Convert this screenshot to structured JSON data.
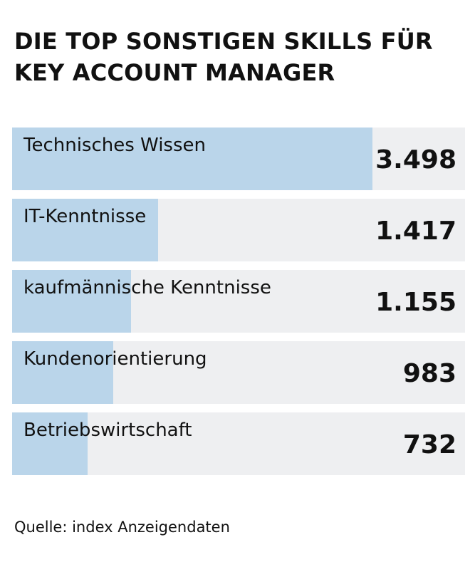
{
  "title": "DIE TOP SONSTIGEN SKILLS FÜR KEY ACCOUNT MANAGER",
  "source": "Quelle: index Anzeigendaten",
  "colors": {
    "bar_fill": "#bad5ea",
    "track": "#eeeff1",
    "text": "#111111"
  },
  "chart_data": {
    "type": "bar",
    "orientation": "horizontal",
    "title": "DIE TOP SONSTIGEN SKILLS FÜR KEY ACCOUNT MANAGER",
    "categories": [
      "Technisches Wissen",
      "IT-Kenntnisse",
      "kaufmännische Kenntnisse",
      "Kundenorientierung",
      "Betriebswirtschaft"
    ],
    "values": [
      3498,
      1417,
      1155,
      983,
      732
    ],
    "value_labels": [
      "3.498",
      "1.417",
      "1.155",
      "983",
      "732"
    ],
    "xlim": [
      0,
      4400
    ],
    "grid": false,
    "legend": "none"
  }
}
